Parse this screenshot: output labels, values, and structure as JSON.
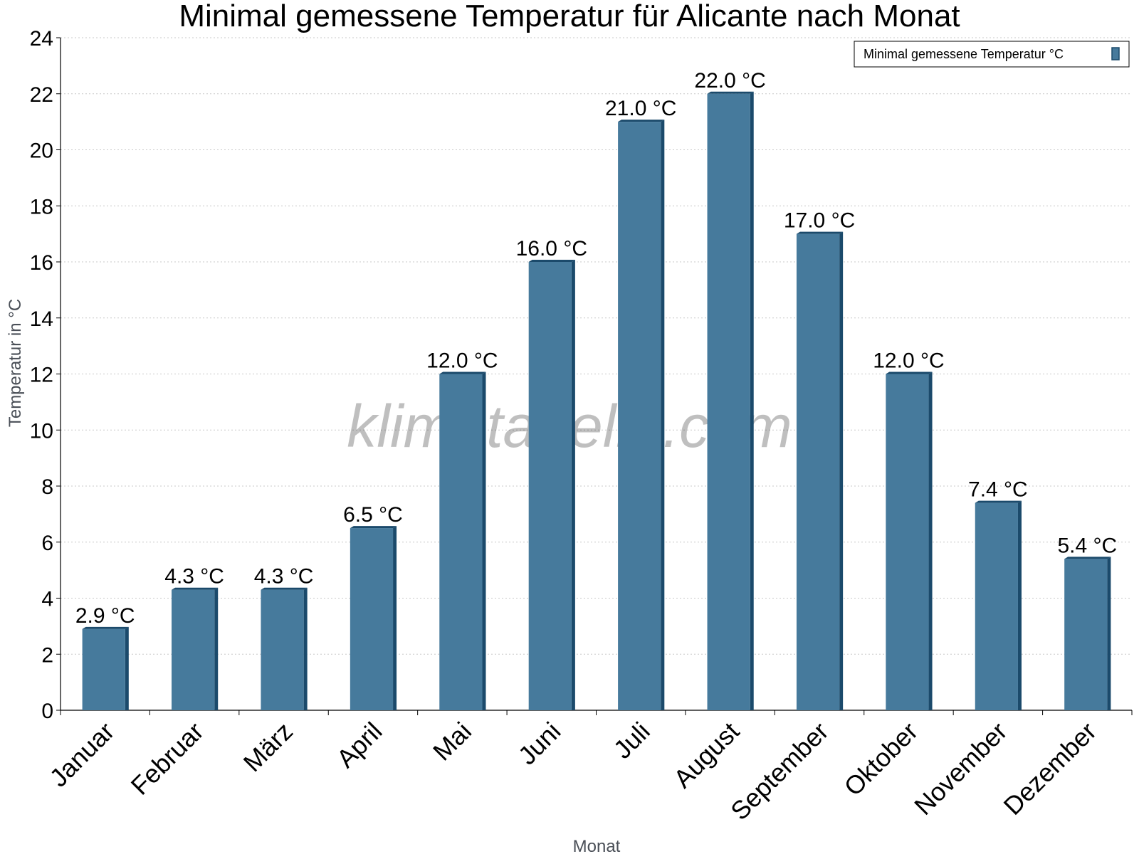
{
  "watermark": "klimatabelle.com",
  "chart_data": {
    "type": "bar",
    "title": "Minimal gemessene Temperatur für Alicante nach Monat",
    "xlabel": "Monat",
    "ylabel": "Temperatur in °C",
    "ylim": [
      0,
      24
    ],
    "yticks": [
      0,
      2,
      4,
      6,
      8,
      10,
      12,
      14,
      16,
      18,
      20,
      22,
      24
    ],
    "grid": true,
    "legend_position": "top-right",
    "categories": [
      "Januar",
      "Februar",
      "März",
      "April",
      "Mai",
      "Juni",
      "Juli",
      "August",
      "September",
      "Oktober",
      "November",
      "Dezember"
    ],
    "series": [
      {
        "name": "Minimal gemessene Temperatur °C",
        "color": "#467a9c",
        "values": [
          2.9,
          4.3,
          4.3,
          6.5,
          12.0,
          16.0,
          21.0,
          22.0,
          17.0,
          12.0,
          7.4,
          5.4
        ],
        "data_labels": [
          "2.9 °C",
          "4.3 °C",
          "4.3 °C",
          "6.5 °C",
          "12.0 °C",
          "16.0 °C",
          "21.0 °C",
          "22.0 °C",
          "17.0 °C",
          "12.0 °C",
          "7.4 °C",
          "5.4 °C"
        ]
      }
    ]
  }
}
